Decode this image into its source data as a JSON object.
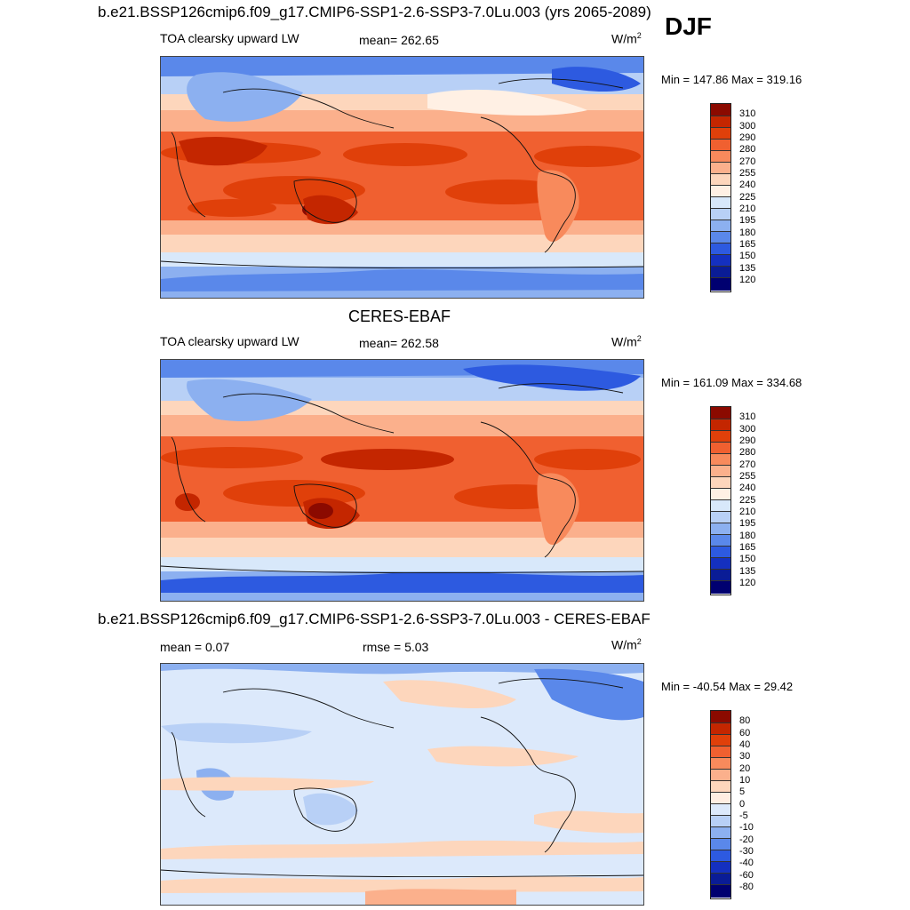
{
  "header": {
    "title": "b.e21.BSSP126cmip6.f09_g17.CMIP6-SSP1-2.6-SSP3-7.0Lu.003 (yrs 2065-2089)",
    "season": "DJF"
  },
  "panel1": {
    "variable": "TOA clearsky upward LW",
    "mean": "mean= 262.65",
    "units": "W/m",
    "units_sup": "2",
    "minmax": "Min = 147.86 Max = 319.16",
    "levels": [
      "310",
      "300",
      "290",
      "280",
      "270",
      "255",
      "240",
      "225",
      "210",
      "195",
      "180",
      "165",
      "150",
      "135",
      "120"
    ]
  },
  "panel2": {
    "title": "CERES-EBAF",
    "variable": "TOA clearsky upward LW",
    "mean": "mean= 262.58",
    "units": "W/m",
    "units_sup": "2",
    "minmax": "Min = 161.09 Max = 334.68",
    "levels": [
      "310",
      "300",
      "290",
      "280",
      "270",
      "255",
      "240",
      "225",
      "210",
      "195",
      "180",
      "165",
      "150",
      "135",
      "120"
    ]
  },
  "panel3": {
    "title": "b.e21.BSSP126cmip6.f09_g17.CMIP6-SSP1-2.6-SSP3-7.0Lu.003 - CERES-EBAF",
    "mean": "mean =   0.07",
    "rmse": "rmse =   5.03",
    "units": "W/m",
    "units_sup": "2",
    "minmax": "Min = -40.54 Max =  29.42",
    "levels": [
      "80",
      "60",
      "40",
      "30",
      "20",
      "10",
      "5",
      "0",
      "-5",
      "-10",
      "-20",
      "-30",
      "-40",
      "-60",
      "-80"
    ]
  },
  "colors": {
    "abs_scale": [
      "#8b0a00",
      "#c42600",
      "#e0400a",
      "#f06030",
      "#f88a5c",
      "#fbb08c",
      "#fdd6bc",
      "#fff0e4",
      "#d8e8fa",
      "#b8d0f6",
      "#8cb0f0",
      "#5a88ea",
      "#2d5ae0",
      "#1430c0",
      "#0a1c96",
      "#000070"
    ],
    "diff_scale": [
      "#8b0a00",
      "#c42600",
      "#e0400a",
      "#f06030",
      "#f88a5c",
      "#fbb08c",
      "#fdd6bc",
      "#ffeee2",
      "#dce9fb",
      "#b8d0f6",
      "#8cb0f0",
      "#5a88ea",
      "#2d5ae0",
      "#1430c0",
      "#0a1c96",
      "#000070"
    ]
  }
}
